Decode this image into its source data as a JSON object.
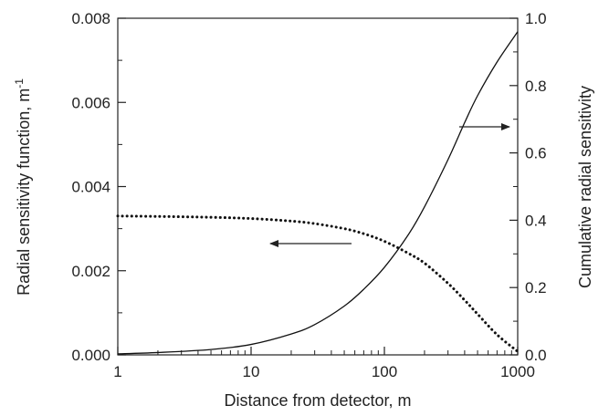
{
  "chart_data": {
    "type": "line",
    "xlabel": "Distance from detector, m",
    "ylabel_left": "Radial sensitivity function, m",
    "ylabel_left_superscript": "-1",
    "ylabel_right": "Cumulative radial sensitivity",
    "x_scale": "log",
    "xlim": [
      1,
      1000
    ],
    "x_ticks": [
      1,
      10,
      100,
      1000
    ],
    "x_tick_labels": [
      "1",
      "10",
      "100",
      "1000"
    ],
    "ylim_left": [
      0,
      0.008
    ],
    "y_left_ticks": [
      0,
      0.002,
      0.004,
      0.006,
      0.008
    ],
    "y_left_tick_labels": [
      "0.000",
      "0.002",
      "0.004",
      "0.006",
      "0.008"
    ],
    "ylim_right": [
      0,
      1.0
    ],
    "y_right_ticks": [
      0,
      0.2,
      0.4,
      0.6,
      0.8,
      1.0
    ],
    "y_right_tick_labels": [
      "0.0",
      "0.2",
      "0.4",
      "0.6",
      "0.8",
      "1.0"
    ],
    "grid": false,
    "series": [
      {
        "style": "dotted",
        "axis": "left",
        "x": [
          1,
          2,
          5,
          10,
          20,
          30,
          50,
          70,
          100,
          150,
          200,
          300,
          400,
          500,
          700,
          1000
        ],
        "y": [
          0.0033,
          0.00329,
          0.00327,
          0.00324,
          0.00318,
          0.00312,
          0.003,
          0.00288,
          0.0027,
          0.00242,
          0.00218,
          0.0017,
          0.0013,
          0.00097,
          0.00048,
          8e-05
        ]
      },
      {
        "style": "solid",
        "axis": "right",
        "x": [
          1,
          2,
          5,
          10,
          20,
          30,
          50,
          70,
          100,
          150,
          200,
          300,
          400,
          500,
          700,
          1000
        ],
        "y": [
          0.003,
          0.007,
          0.016,
          0.031,
          0.062,
          0.09,
          0.145,
          0.195,
          0.26,
          0.355,
          0.44,
          0.58,
          0.69,
          0.77,
          0.87,
          0.96
        ]
      }
    ],
    "annotations": [
      {
        "type": "arrow",
        "direction": "left",
        "refers_to": "left-axis"
      },
      {
        "type": "arrow",
        "direction": "right",
        "refers_to": "right-axis"
      }
    ]
  }
}
